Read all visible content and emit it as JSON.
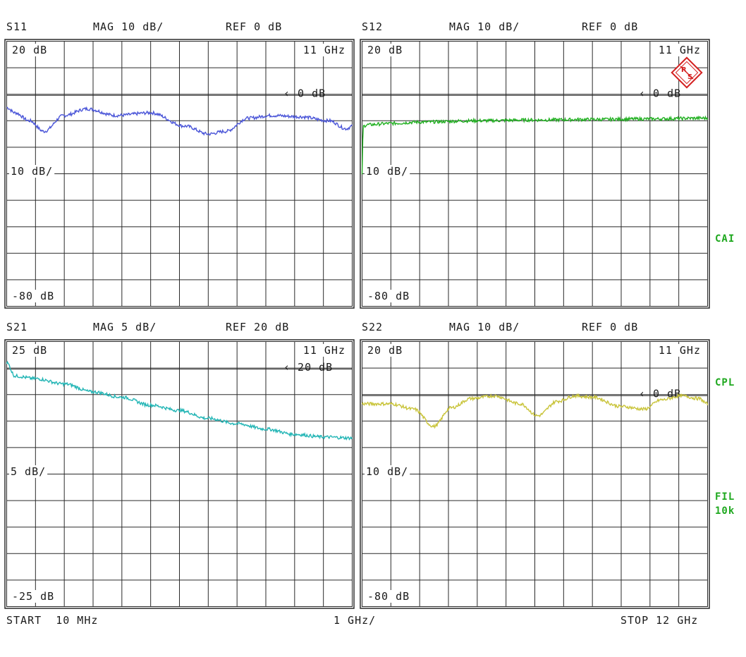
{
  "panels": [
    {
      "param": "S11",
      "mag": "MAG 10 dB/",
      "ref": "REF 0 dB",
      "top_label": "20 dB",
      "mid_label": "10 dB/",
      "bottom_label": "-80 dB",
      "freq_label": "11 GHz",
      "ref_marker": "0 dB",
      "trace_color": "#4a55d8"
    },
    {
      "param": "S12",
      "mag": "MAG 10 dB/",
      "ref": "REF 0 dB",
      "top_label": "20 dB",
      "mid_label": "10 dB/",
      "bottom_label": "-80 dB",
      "freq_label": "11 GHz",
      "ref_marker": "0 dB",
      "trace_color": "#22b022"
    },
    {
      "param": "S21",
      "mag": "MAG 5 dB/",
      "ref": "REF 20 dB",
      "top_label": "25 dB",
      "mid_label": "5 dB/",
      "bottom_label": "-25 dB",
      "freq_label": "11 GHz",
      "ref_marker": "20 dB",
      "trace_color": "#22b5b5"
    },
    {
      "param": "S22",
      "mag": "MAG 10 dB/",
      "ref": "REF 0 dB",
      "top_label": "20 dB",
      "mid_label": "10 dB/",
      "bottom_label": "-80 dB",
      "freq_label": "11 GHz",
      "ref_marker": "0 dB",
      "trace_color": "#c9c43a"
    }
  ],
  "footer": {
    "start": "START  10 MHz",
    "div": "1 GHz/",
    "stop": "STOP 12 GHz"
  },
  "side_labels": {
    "cal": "CAI",
    "cpl": "CPL",
    "fil": "FIL",
    "fil_val": "10k"
  },
  "colors": {
    "grid": "#2a2a2a",
    "ref_marker": "#c0392b",
    "side": "#1fa81f",
    "logo": "#d42020"
  },
  "chart_data": [
    {
      "type": "line",
      "title": "S11",
      "xlim": [
        0.01,
        12
      ],
      "x_unit": "GHz",
      "ylim": [
        -80,
        20
      ],
      "y_unit": "dB",
      "x": [
        0.01,
        0.3,
        0.8,
        1.3,
        2.0,
        2.8,
        3.8,
        5.0,
        6.2,
        7.0,
        7.6,
        8.4,
        9.2,
        10.2,
        11.2,
        11.8,
        12
      ],
      "values": [
        -5,
        -7,
        -10,
        -14,
        -8,
        -5.5,
        -8,
        -7,
        -12,
        -15,
        -14,
        -9,
        -8,
        -8.5,
        -10,
        -13,
        -12
      ]
    },
    {
      "type": "line",
      "title": "S12",
      "xlim": [
        0.01,
        12
      ],
      "x_unit": "GHz",
      "ylim": [
        -80,
        20
      ],
      "y_unit": "dB",
      "x": [
        0.01,
        0.05,
        0.2,
        1,
        2,
        4,
        6,
        8,
        10,
        12
      ],
      "values": [
        -30,
        -12,
        -11.5,
        -11,
        -10.5,
        -10,
        -9.7,
        -9.5,
        -9.3,
        -9
      ]
    },
    {
      "type": "line",
      "title": "S21",
      "xlim": [
        0.01,
        12
      ],
      "x_unit": "GHz",
      "ylim": [
        -25,
        25
      ],
      "y_unit": "dB",
      "x": [
        0.01,
        0.3,
        1,
        2,
        3,
        4,
        5,
        6,
        7,
        8,
        9,
        10,
        11,
        12
      ],
      "values": [
        21,
        18.5,
        18,
        17,
        15.5,
        14.5,
        13,
        12,
        10.5,
        9.5,
        8.5,
        7.5,
        7,
        6.8
      ]
    },
    {
      "type": "line",
      "title": "S22",
      "xlim": [
        0.01,
        12
      ],
      "x_unit": "GHz",
      "ylim": [
        -80,
        20
      ],
      "y_unit": "dB",
      "x": [
        0.01,
        1,
        1.8,
        2.5,
        3.1,
        3.8,
        4.6,
        5.5,
        6.1,
        6.8,
        7.4,
        8,
        9.0,
        9.8,
        10.4,
        11.1,
        11.7,
        12
      ],
      "values": [
        -3.5,
        -3.5,
        -5.5,
        -12,
        -5,
        -1.5,
        -0.5,
        -3.5,
        -8,
        -2.5,
        -0.5,
        -1,
        -4.5,
        -5.5,
        -2,
        -0.5,
        -1.5,
        -3.5
      ]
    }
  ]
}
